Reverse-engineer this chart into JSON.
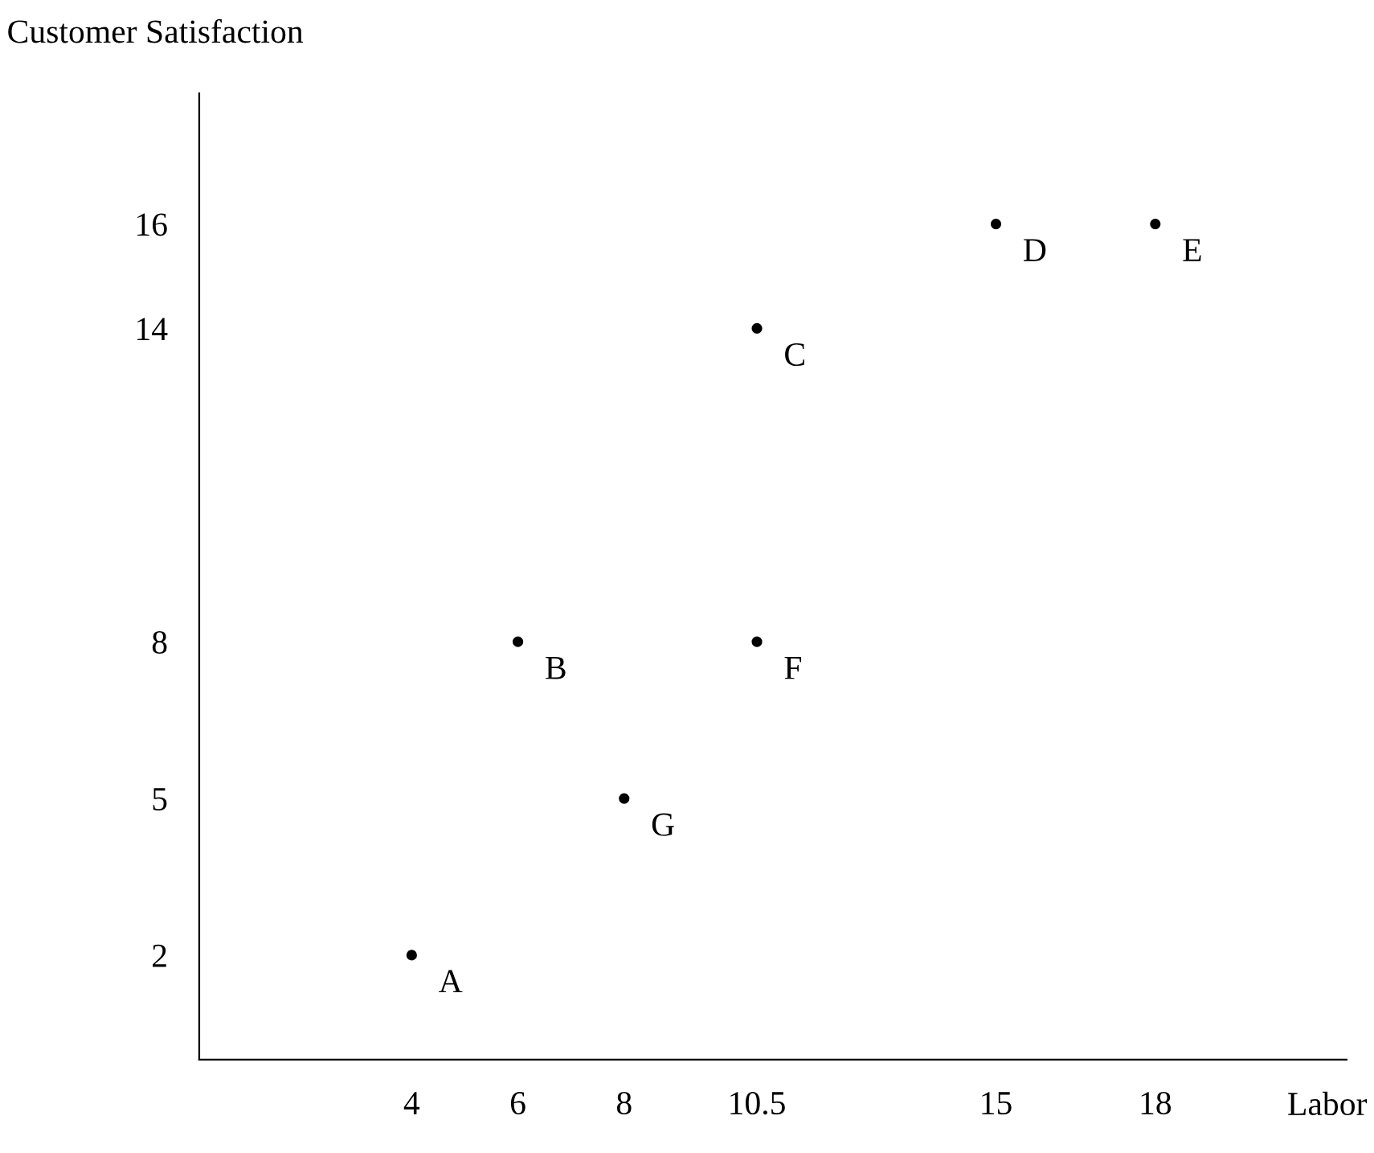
{
  "chart_data": {
    "type": "scatter",
    "xlabel": "Labor",
    "ylabel": "Customer Satisfaction",
    "x": [
      4,
      6,
      10.5,
      15,
      18,
      10.5,
      8
    ],
    "series": [
      {
        "color": "#000000",
        "values": [
          2,
          8,
          14,
          16,
          16,
          8,
          5
        ]
      }
    ],
    "annotations": [
      {
        "text": "A",
        "x": 4,
        "y": 2
      },
      {
        "text": "B",
        "x": 6,
        "y": 8
      },
      {
        "text": "C",
        "x": 10.5,
        "y": 14
      },
      {
        "text": "D",
        "x": 15,
        "y": 16
      },
      {
        "text": "E",
        "x": 18,
        "y": 16
      },
      {
        "text": "F",
        "x": 10.5,
        "y": 8
      },
      {
        "text": "G",
        "x": 8,
        "y": 5
      }
    ],
    "xlim": [
      0,
      21.6
    ],
    "ylim": [
      0,
      18.5
    ],
    "xticks": [
      4,
      6,
      8,
      10.5,
      15,
      18
    ],
    "yticks": [
      2,
      5,
      8,
      14,
      16
    ],
    "marker": "circle",
    "grid": false,
    "legend": false
  }
}
